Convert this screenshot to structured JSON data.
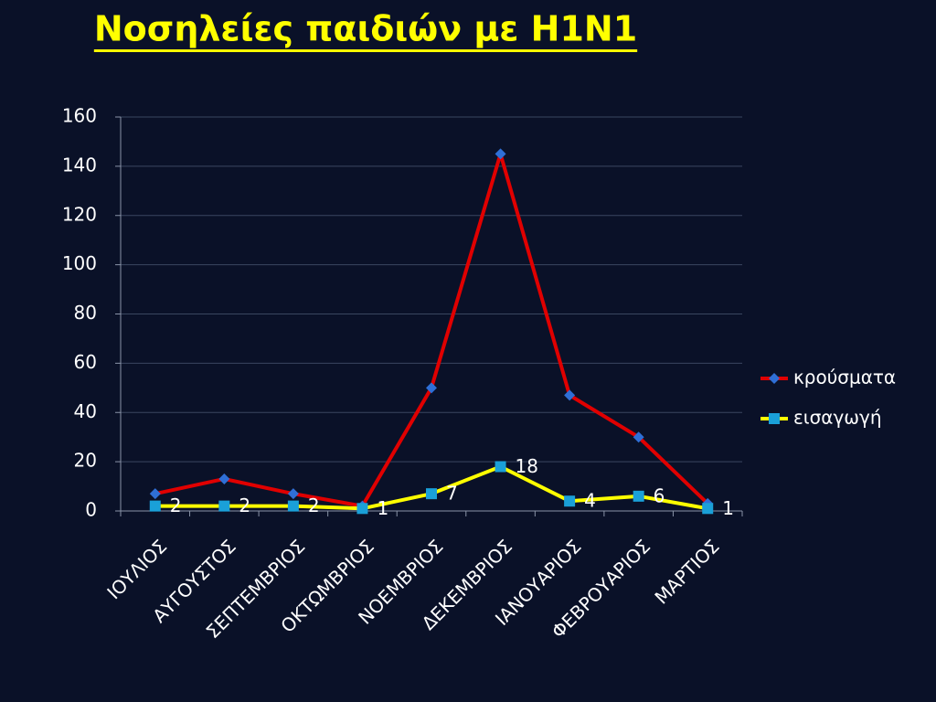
{
  "chart_data": {
    "type": "line",
    "title": "Νοσηλείες παιδιών με Η1Ν1",
    "categories": [
      "ΙΟΥΛΙΟΣ",
      "ΑΥΓΟΥΣΤΟΣ",
      "ΣΕΠΤΕΜΒΡΙΟΣ",
      "ΟΚΤΩΜΒΡΙΟΣ",
      "ΝΟΕΜΒΡΙΟΣ",
      "ΔΕΚΕΜΒΡΙΟΣ",
      "ΙΑΝΟΥΑΡΙΟΣ",
      "ΦΕΒΡΟΥΑΡΙΟΣ",
      "ΜΑΡΤΙΟΣ"
    ],
    "series": [
      {
        "name": "κρούσματα",
        "color": "#e00000",
        "marker": "diamond",
        "marker_color": "#2f6fd6",
        "values": [
          7,
          13,
          7,
          2,
          50,
          145,
          47,
          30,
          3
        ]
      },
      {
        "name": "εισαγωγή",
        "color": "#ffff00",
        "marker": "square",
        "marker_color": "#1aa0d8",
        "values": [
          2,
          2,
          2,
          1,
          7,
          18,
          4,
          6,
          1
        ],
        "data_labels": true
      }
    ],
    "ylim": [
      0,
      160
    ],
    "yticks": [
      0,
      20,
      40,
      60,
      80,
      100,
      120,
      140,
      160
    ],
    "grid": true,
    "legend": "right"
  }
}
